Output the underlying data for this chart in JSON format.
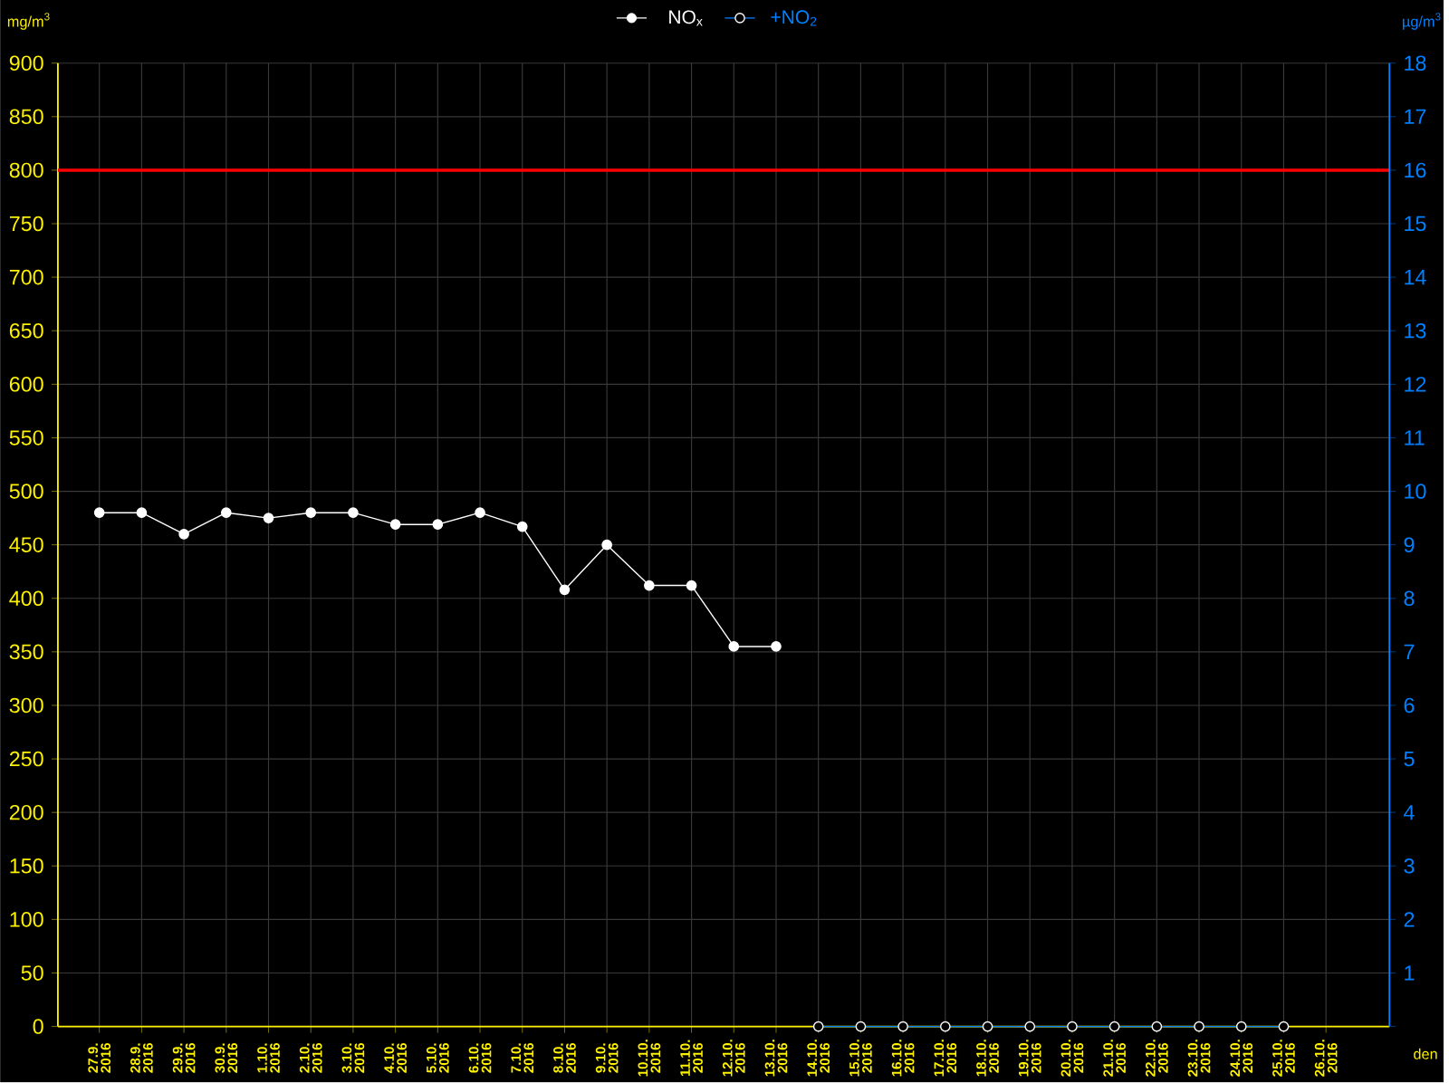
{
  "chart_data": {
    "type": "line",
    "categories": [
      "27.9. 2016",
      "28.9. 2016",
      "29.9. 2016",
      "30.9. 2016",
      "1.10. 2016",
      "2.10. 2016",
      "3.10. 2016",
      "4.10. 2016",
      "5.10. 2016",
      "6.10. 2016",
      "7.10. 2016",
      "8.10. 2016",
      "9.10. 2016",
      "10.10. 2016",
      "11.10. 2016",
      "12.10. 2016",
      "13.10. 2016",
      "14.10. 2016",
      "15.10. 2016",
      "16.10. 2016",
      "17.10. 2016",
      "18.10. 2016",
      "19.10. 2016",
      "20.10. 2016",
      "21.10. 2016",
      "22.10. 2016",
      "23.10. 2016",
      "24.10. 2016",
      "25.10. 2016",
      "26.10. 2016"
    ],
    "series": [
      {
        "name": "NO$_{x}$",
        "color": "#ffffff",
        "values": [
          480,
          480,
          460,
          480,
          475,
          480,
          480,
          469,
          469,
          480,
          467,
          408,
          450,
          412,
          412,
          355,
          355,
          null,
          null,
          null,
          null,
          null,
          null,
          null,
          null,
          null,
          null,
          null,
          null,
          null
        ]
      },
      {
        "name": "+NO$_{2}$",
        "color": "#0080ff",
        "axis": "y2",
        "values": [
          null,
          null,
          null,
          null,
          null,
          null,
          null,
          null,
          null,
          null,
          null,
          null,
          null,
          null,
          null,
          null,
          null,
          0,
          0,
          0,
          0,
          0,
          0,
          0,
          0,
          0,
          0,
          0,
          0,
          null
        ]
      }
    ],
    "xlabel": "den",
    "ylabel": "mg/m$^{3}$",
    "y2label": "µg/m$^{3}$",
    "ylim": [
      0,
      900
    ],
    "yticks": [
      0,
      50,
      100,
      150,
      200,
      250,
      300,
      350,
      400,
      450,
      500,
      550,
      600,
      650,
      700,
      750,
      800,
      850,
      900
    ],
    "y2lim": [
      0,
      18
    ],
    "y2ticks": [
      {
        "value": 0,
        "label": null
      },
      1,
      2,
      3,
      4,
      5,
      6,
      7,
      8,
      9,
      10,
      11,
      12,
      13,
      14,
      15,
      16,
      17,
      18
    ],
    "ref_lines": [
      {
        "axis": "y",
        "value": 800,
        "color": "#ff0000"
      }
    ],
    "grid": true,
    "legend": "top",
    "marker": "circle",
    "line_style": "solid"
  }
}
